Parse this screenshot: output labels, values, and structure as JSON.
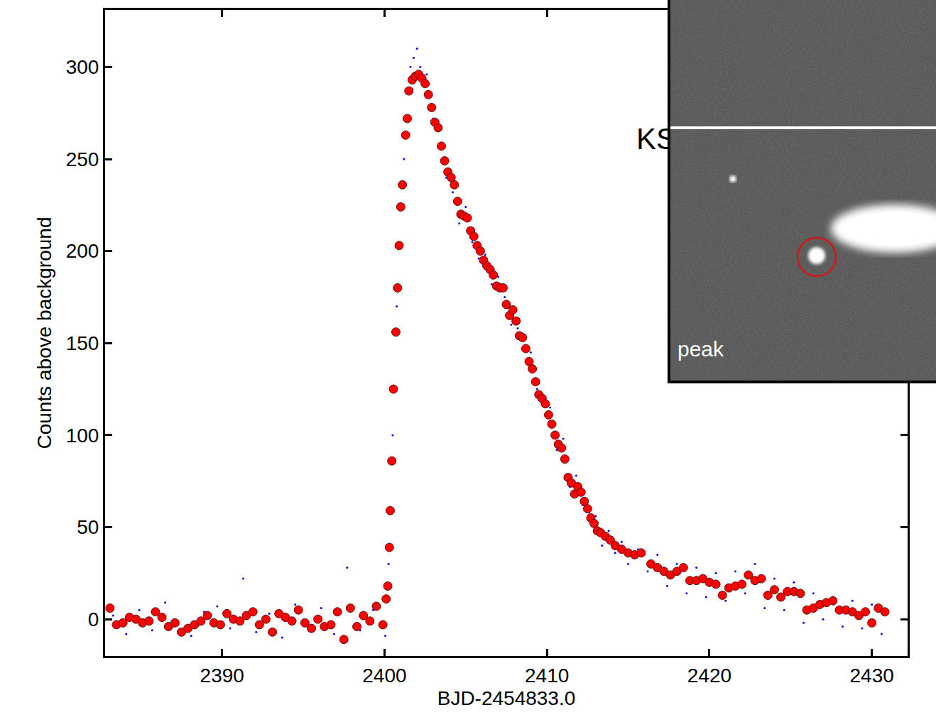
{
  "chart_data": {
    "type": "scatter",
    "xlabel": "BJD-2454833.0",
    "ylabel": "Counts above background",
    "xlim": [
      2382.8,
      2432.2
    ],
    "xticks": [
      2390,
      2400,
      2410,
      2420,
      2430
    ],
    "ylim": [
      -20,
      331
    ],
    "yticks": [
      0,
      50,
      100,
      150,
      200,
      250,
      300
    ],
    "grid": false,
    "annotations": [
      "KSN"
    ],
    "series": [
      {
        "color": "#0000ff",
        "marker": "dot",
        "x": [
          2383.3,
          2384.1,
          2384.9,
          2385.7,
          2386.5,
          2387.3,
          2388.1,
          2388.9,
          2389.7,
          2390.5,
          2391.3,
          2392.1,
          2392.9,
          2393.7,
          2394.5,
          2395.3,
          2396.1,
          2396.9,
          2397.7,
          2398.5,
          2399.3,
          2400.05,
          2400.25,
          2400.5,
          2400.75,
          2401.2,
          2401.6,
          2401.8,
          2402.0,
          2402.2,
          2402.6,
          2403.0,
          2403.4,
          2403.8,
          2404.2,
          2404.6,
          2405.0,
          2405.4,
          2405.8,
          2406.2,
          2406.6,
          2407.0,
          2407.4,
          2407.8,
          2408.2,
          2408.6,
          2409.0,
          2409.4,
          2409.8,
          2410.2,
          2410.6,
          2411.0,
          2411.4,
          2411.8,
          2412.2,
          2412.6,
          2413.0,
          2413.4,
          2413.8,
          2414.2,
          2414.6,
          2415.0,
          2415.6,
          2416.2,
          2416.8,
          2417.4,
          2418.0,
          2418.6,
          2419.2,
          2419.8,
          2420.4,
          2421.0,
          2421.6,
          2422.2,
          2422.8,
          2423.4,
          2424.0,
          2424.6,
          2425.2,
          2425.8,
          2426.4,
          2427.0,
          2427.6,
          2428.2,
          2428.8,
          2429.4,
          2430.0,
          2430.6
        ],
        "values": [
          2,
          -8,
          5,
          -6,
          9,
          -3,
          -9,
          4,
          7,
          -5,
          22,
          -7,
          3,
          -10,
          8,
          -4,
          6,
          -8,
          28,
          -6,
          5,
          -9,
          30,
          100,
          170,
          250,
          300,
          305,
          310,
          300,
          296,
          272,
          268,
          240,
          232,
          215,
          224,
          205,
          196,
          198,
          182,
          186,
          175,
          160,
          158,
          148,
          145,
          125,
          118,
          115,
          92,
          98,
          72,
          78,
          62,
          58,
          56,
          40,
          48,
          36,
          42,
          30,
          38,
          26,
          35,
          18,
          30,
          14,
          28,
          12,
          25,
          10,
          26,
          14,
          30,
          6,
          22,
          5,
          20,
          -2,
          14,
          0,
          12,
          -4,
          10,
          -5,
          8,
          -8
        ]
      },
      {
        "color": "#ff0000",
        "marker": "circle",
        "x": [
          2383.1,
          2383.5,
          2383.9,
          2384.3,
          2384.7,
          2385.1,
          2385.5,
          2385.9,
          2386.3,
          2386.7,
          2387.1,
          2387.5,
          2387.9,
          2388.3,
          2388.7,
          2389.1,
          2389.5,
          2389.9,
          2390.3,
          2390.7,
          2391.1,
          2391.5,
          2391.9,
          2392.3,
          2392.7,
          2393.1,
          2393.5,
          2393.9,
          2394.3,
          2394.7,
          2395.1,
          2395.5,
          2395.9,
          2396.3,
          2396.7,
          2397.1,
          2397.5,
          2397.9,
          2398.3,
          2398.7,
          2399.1,
          2399.5,
          2399.9,
          2400.1,
          2400.2,
          2400.3,
          2400.35,
          2400.45,
          2400.55,
          2400.7,
          2400.8,
          2400.9,
          2401.0,
          2401.1,
          2401.3,
          2401.4,
          2401.5,
          2401.7,
          2401.9,
          2402.1,
          2402.3,
          2402.5,
          2402.7,
          2402.9,
          2403.1,
          2403.3,
          2403.5,
          2403.7,
          2403.9,
          2404.1,
          2404.3,
          2404.5,
          2404.7,
          2404.9,
          2405.1,
          2405.3,
          2405.5,
          2405.7,
          2405.9,
          2406.1,
          2406.3,
          2406.5,
          2406.7,
          2406.9,
          2407.1,
          2407.3,
          2407.5,
          2407.7,
          2407.9,
          2408.1,
          2408.3,
          2408.5,
          2408.7,
          2408.9,
          2409.1,
          2409.3,
          2409.5,
          2409.7,
          2409.9,
          2410.1,
          2410.3,
          2410.5,
          2410.7,
          2410.9,
          2411.1,
          2411.3,
          2411.5,
          2411.7,
          2411.9,
          2412.1,
          2412.3,
          2412.5,
          2412.7,
          2412.9,
          2413.1,
          2413.3,
          2413.6,
          2413.9,
          2414.2,
          2414.6,
          2415.0,
          2415.4,
          2415.8,
          2416.4,
          2416.8,
          2417.2,
          2417.6,
          2418.0,
          2418.4,
          2418.8,
          2419.2,
          2419.6,
          2420.0,
          2420.4,
          2420.8,
          2421.2,
          2421.6,
          2422.0,
          2422.4,
          2422.8,
          2423.2,
          2423.6,
          2424.0,
          2424.4,
          2424.8,
          2425.2,
          2425.6,
          2426.0,
          2426.4,
          2426.8,
          2427.2,
          2427.6,
          2428.0,
          2428.4,
          2428.8,
          2429.2,
          2429.6,
          2430.0,
          2430.4,
          2430.8
        ],
        "values": [
          6,
          -3,
          -2,
          1,
          0,
          -2,
          -1,
          4,
          1,
          -4,
          -2,
          -7,
          -5,
          -3,
          -1,
          2,
          -2,
          -3,
          3,
          0,
          -1,
          2,
          4,
          -3,
          0,
          -7,
          3,
          1,
          -1,
          5,
          -2,
          -5,
          0,
          -4,
          -3,
          4,
          -11,
          6,
          -4,
          2,
          -1,
          7,
          -3,
          11,
          18,
          39,
          59,
          86,
          125,
          156,
          180,
          203,
          224,
          236,
          263,
          272,
          287,
          293,
          295,
          296,
          294,
          291,
          285,
          278,
          270,
          267,
          257,
          249,
          243,
          240,
          236,
          227,
          220,
          219,
          218,
          211,
          208,
          203,
          200,
          195,
          192,
          190,
          187,
          181,
          180,
          180,
          171,
          165,
          168,
          162,
          154,
          153,
          147,
          140,
          136,
          129,
          122,
          120,
          117,
          111,
          106,
          100,
          95,
          93,
          87,
          77,
          74,
          68,
          72,
          69,
          64,
          60,
          55,
          52,
          48,
          47,
          45,
          43,
          40,
          38,
          36,
          35,
          36,
          30,
          28,
          26,
          24,
          26,
          28,
          21,
          21,
          22,
          20,
          19,
          13,
          17,
          18,
          19,
          24,
          21,
          22,
          13,
          16,
          12,
          15,
          15,
          14,
          5,
          6,
          8,
          9,
          10,
          5,
          5,
          4,
          2,
          4,
          -2,
          6,
          4
        ]
      }
    ]
  },
  "inset": {
    "label": "peak"
  }
}
